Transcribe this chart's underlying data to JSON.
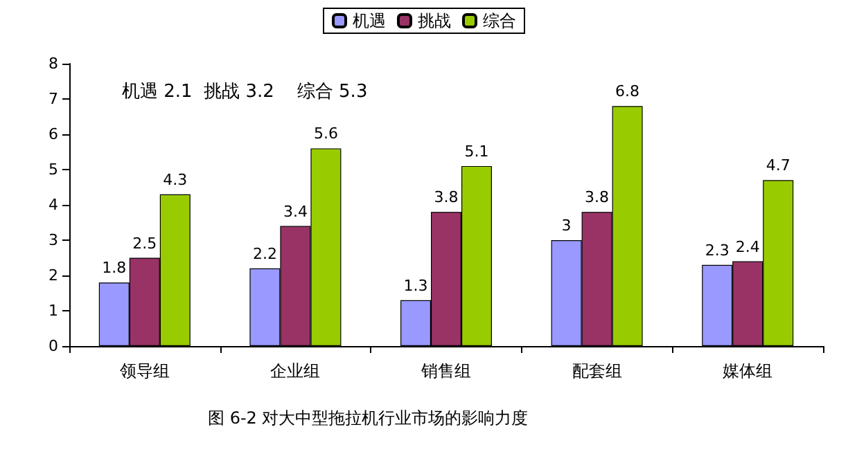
{
  "chart_data": {
    "type": "bar",
    "categories": [
      "领导组",
      "企业组",
      "销售组",
      "配套组",
      "媒体组"
    ],
    "series": [
      {
        "name": "机遇",
        "color": "#9999ff",
        "values": [
          1.8,
          2.2,
          1.3,
          3,
          2.3
        ]
      },
      {
        "name": "挑战",
        "color": "#993366",
        "values": [
          2.5,
          3.4,
          3.8,
          3.8,
          2.4
        ]
      },
      {
        "name": "综合",
        "color": "#99cc00",
        "values": [
          4.3,
          5.6,
          5.1,
          6.8,
          4.7
        ]
      }
    ],
    "ylim": [
      0,
      8
    ],
    "yticks": [
      0,
      1,
      2,
      3,
      4,
      5,
      6,
      7,
      8
    ],
    "grid": false,
    "legend": "top",
    "data_labels": true,
    "annotations": [
      "机遇 2.1  挑战 3.2    综合 5.3",
      "图 6-2 对大中型拖拉机行业市场的影响力度"
    ]
  }
}
